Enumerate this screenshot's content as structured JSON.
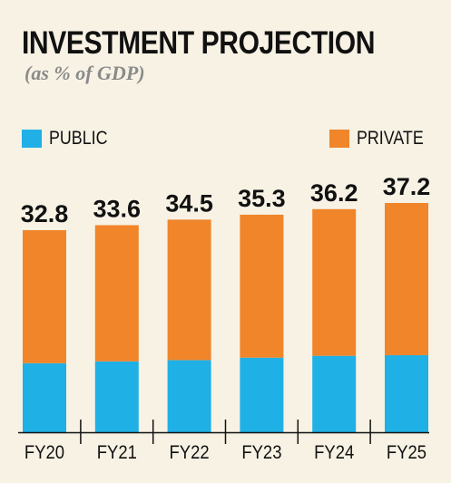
{
  "chart_data": {
    "type": "bar",
    "stacked": true,
    "title": "INVESTMENT PROJECTION",
    "subtitle": "(as % of GDP)",
    "categories": [
      "FY20",
      "FY21",
      "FY22",
      "FY23",
      "FY24",
      "FY25"
    ],
    "totals": [
      "32.8",
      "33.6",
      "34.5",
      "35.3",
      "36.2",
      "37.2"
    ],
    "series": [
      {
        "name": "PUBLIC",
        "color": "#1fb0e6",
        "values": [
          11.2,
          11.5,
          11.7,
          12.1,
          12.4,
          12.5
        ]
      },
      {
        "name": "PRIVATE",
        "color": "#f0852a",
        "values": [
          21.6,
          22.1,
          22.8,
          23.2,
          23.8,
          24.7
        ]
      }
    ],
    "ylim": [
      0,
      37.2
    ],
    "legend_position": "top",
    "grid": false
  }
}
